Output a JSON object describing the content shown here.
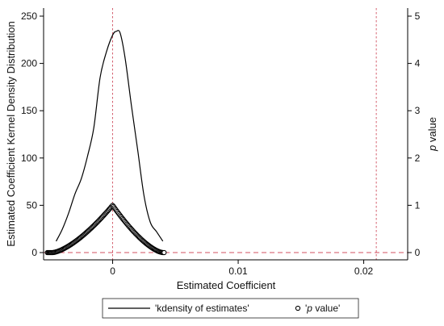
{
  "chart_data": {
    "type": "line",
    "xlabel": "Estimated Coefficient",
    "ylabel_left": "Estimated Coefficient Kernel Density Distribution",
    "ylabel_right_italic": "p",
    "ylabel_right_rest": " value",
    "xlim": [
      -0.0055,
      0.0235
    ],
    "ylim_left": [
      0,
      250
    ],
    "ylim_right": [
      0,
      5
    ],
    "x_ticks": [
      {
        "value": 0,
        "label": "0"
      },
      {
        "value": 0.01,
        "label": "0.01"
      },
      {
        "value": 0.02,
        "label": "0.02"
      }
    ],
    "y_left_ticks": [
      {
        "value": 0,
        "label": "0"
      },
      {
        "value": 50,
        "label": "50"
      },
      {
        "value": 100,
        "label": "100"
      },
      {
        "value": 150,
        "label": "150"
      },
      {
        "value": 200,
        "label": "200"
      },
      {
        "value": 250,
        "label": "250"
      }
    ],
    "y_right_ticks": [
      {
        "value": 0,
        "label": "0"
      },
      {
        "value": 1,
        "label": "1"
      },
      {
        "value": 2,
        "label": "2"
      },
      {
        "value": 3,
        "label": "3"
      },
      {
        "value": 4,
        "label": "4"
      },
      {
        "value": 5,
        "label": "5"
      }
    ],
    "reference_lines": {
      "vertical": [
        0,
        0.021
      ],
      "horizontal_right_axis": [
        0
      ]
    },
    "series": [
      {
        "name": "'kdensity of estimates'",
        "axis": "left",
        "style": "line",
        "x": [
          -0.0045,
          -0.004,
          -0.0035,
          -0.003,
          -0.0025,
          -0.002,
          -0.0015,
          -0.001,
          -0.0005,
          0,
          0.0003,
          0.0006,
          0.001,
          0.0015,
          0.002,
          0.0025,
          0.003,
          0.0035,
          0.004
        ],
        "y": [
          12,
          25,
          42,
          62,
          78,
          102,
          132,
          185,
          212,
          230,
          234,
          232,
          205,
          155,
          108,
          60,
          32,
          22,
          12
        ]
      },
      {
        "name_prefix": "'",
        "name_italic": "p",
        "name_rest": " value'",
        "axis": "right",
        "style": "hollow-circles",
        "peak_x": 0,
        "peak_y": 1,
        "x_range": [
          -0.0052,
          0.0041
        ],
        "x_min_extent": -0.0048,
        "x_max_extent": 0.004,
        "n_points": 130
      }
    ],
    "legend": {
      "position": "bottom",
      "border": true
    },
    "grid": false
  }
}
